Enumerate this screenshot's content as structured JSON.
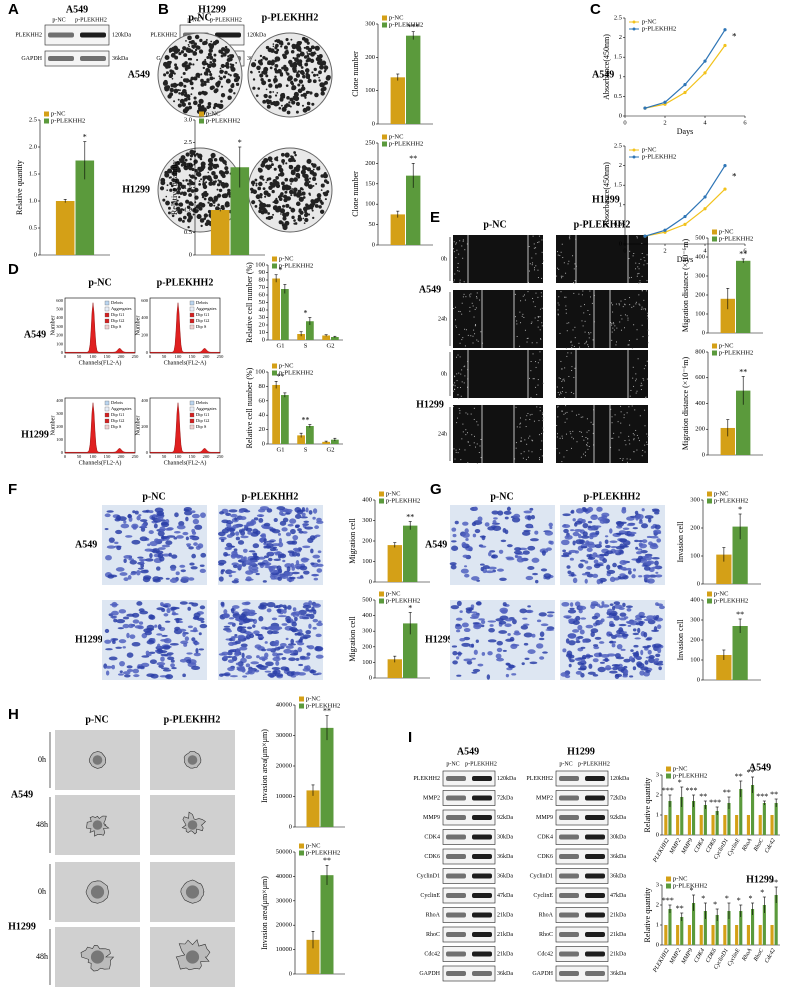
{
  "figure": {
    "panels": [
      "A",
      "B",
      "C",
      "D",
      "E",
      "F",
      "G",
      "H",
      "I"
    ],
    "A": {
      "cell_lines": [
        "A549",
        "H1299"
      ],
      "lanes": [
        "p-NC",
        "p-PLEKHH2"
      ],
      "blots": [
        {
          "protein": "PLEKHH2",
          "size": "120kDa"
        },
        {
          "protein": "GAPDH",
          "size": "36kDa"
        }
      ]
    },
    "B": {
      "columns": [
        "p-NC",
        "p-PLEKHH2"
      ],
      "rows": [
        "A549",
        "H1299"
      ]
    },
    "C": {
      "rows": [
        "A549",
        "H1299"
      ]
    },
    "D": {
      "columns": [
        "p-NC",
        "p-PLEKHH2"
      ],
      "rows": [
        "A549",
        "H1299"
      ],
      "legend": [
        "Debris",
        "Aggregates",
        "Dip G1",
        "Dip G2",
        "Dip S"
      ],
      "xlabel": "Channels(FL2-A)",
      "ylabel": "Number",
      "xticks": [
        0,
        50,
        100,
        150,
        200,
        250
      ],
      "yticks": [
        [
          0,
          100,
          200,
          300,
          400,
          500,
          600
        ],
        [
          0,
          200,
          400,
          600
        ],
        [
          0,
          100,
          200,
          300,
          400
        ],
        [
          0,
          200,
          400
        ]
      ]
    },
    "E": {
      "columns": [
        "p-NC",
        "p-PLEKHH2"
      ],
      "rows": [
        "A549",
        "H1299"
      ],
      "times": [
        "0h",
        "24h"
      ]
    },
    "F": {
      "columns": [
        "p-NC",
        "p-PLEKHH2"
      ],
      "rows": [
        "A549",
        "H1299"
      ]
    },
    "G": {
      "columns": [
        "p-NC",
        "p-PLEKHH2"
      ],
      "rows": [
        "A549",
        "H1299"
      ]
    },
    "H": {
      "columns": [
        "p-NC",
        "p-PLEKHH2"
      ],
      "rows": [
        "A549",
        "H1299"
      ],
      "times": [
        "0h",
        "48h"
      ]
    },
    "I": {
      "cell_lines": [
        "A549",
        "H1299"
      ],
      "lanes": [
        "p-NC",
        "p-PLEKHH2"
      ],
      "blots": [
        {
          "protein": "PLEKHH2",
          "size": "120kDa"
        },
        {
          "protein": "MMP2",
          "size": "72kDa"
        },
        {
          "protein": "MMP9",
          "size": "92kDa"
        },
        {
          "protein": "CDK4",
          "size": "30kDa"
        },
        {
          "protein": "CDK6",
          "size": "36kDa"
        },
        {
          "protein": "CyclinD1",
          "size": "36kDa"
        },
        {
          "protein": "CyclinE",
          "size": "47kDa"
        },
        {
          "protein": "RhoA",
          "size": "21kDa"
        },
        {
          "protein": "RhoC",
          "size": "21kDa"
        },
        {
          "protein": "Cdc42",
          "size": "21kDa"
        },
        {
          "protein": "GAPDH",
          "size": "36kDa"
        }
      ],
      "chart_titles": [
        "A549",
        "H1299"
      ]
    }
  },
  "chart_data": [
    {
      "type": "bar",
      "ylabel": "Relative quantity",
      "categories": [
        null
      ],
      "series": [
        {
          "name": "p-NC",
          "color": "#d4a017",
          "values": [
            1.0
          ],
          "errors": [
            0.03
          ]
        },
        {
          "name": "p-PLEKHH2",
          "color": "#5b9a3c",
          "values": [
            1.75
          ],
          "errors": [
            0.35
          ]
        }
      ],
      "significance": [
        "*"
      ],
      "ylim": [
        0,
        2.5
      ],
      "yticks": [
        0,
        0.5,
        {
          "value": 1,
          "label": "1.0"
        },
        1.5,
        {
          "value": 2,
          "label": "2.0"
        },
        2.5
      ]
    },
    {
      "type": "bar",
      "ylabel": "Relative quantity",
      "categories": [
        null
      ],
      "series": [
        {
          "name": "p-NC",
          "color": "#d4a017",
          "values": [
            1.0
          ],
          "errors": [
            0.03
          ]
        },
        {
          "name": "p-PLEKHH2",
          "color": "#5b9a3c",
          "values": [
            1.95
          ],
          "errors": [
            0.45
          ]
        }
      ],
      "significance": [
        "*"
      ],
      "ylim": [
        0,
        3
      ],
      "yticks": [
        0,
        0.5,
        {
          "value": 1,
          "label": "1.0"
        },
        1.5,
        {
          "value": 2,
          "label": "2.0"
        },
        2.5,
        {
          "value": 3,
          "label": "3.0"
        }
      ]
    },
    {
      "type": "bar",
      "ylabel": "Clone number",
      "categories": [
        null
      ],
      "series": [
        {
          "name": "p-NC",
          "color": "#d4a017",
          "values": [
            140
          ],
          "errors": [
            10
          ]
        },
        {
          "name": "p-PLEKHH2",
          "color": "#5b9a3c",
          "values": [
            265
          ],
          "errors": [
            12
          ]
        }
      ],
      "significance": [
        "***"
      ],
      "ylim": [
        0,
        300
      ],
      "yticks": [
        0,
        100,
        200,
        300
      ]
    },
    {
      "type": "bar",
      "ylabel": "Clone number",
      "categories": [
        null
      ],
      "series": [
        {
          "name": "p-NC",
          "color": "#d4a017",
          "values": [
            75
          ],
          "errors": [
            8
          ]
        },
        {
          "name": "p-PLEKHH2",
          "color": "#5b9a3c",
          "values": [
            170
          ],
          "errors": [
            30
          ]
        }
      ],
      "significance": [
        "**"
      ],
      "ylim": [
        0,
        250
      ],
      "yticks": [
        0,
        50,
        100,
        150,
        200,
        250
      ]
    },
    {
      "type": "line",
      "ylabel": "Absorbance(450nm)",
      "xlabel": "Days",
      "x": [
        1,
        2,
        3,
        4,
        5
      ],
      "series": [
        {
          "name": "p-NC",
          "color": "#f2c21b",
          "values": [
            0.2,
            0.3,
            0.6,
            1.1,
            1.8
          ]
        },
        {
          "name": "p-PLEKHH2",
          "color": "#2e75b6",
          "values": [
            0.2,
            0.35,
            0.8,
            1.4,
            2.2
          ]
        }
      ],
      "annotation": "*",
      "xlim": [
        0,
        6
      ],
      "xticks": [
        0,
        2,
        4,
        6
      ],
      "ylim": [
        0,
        2.5
      ],
      "yticks": [
        0,
        0.5,
        1,
        1.5,
        2,
        2.5
      ]
    },
    {
      "type": "line",
      "ylabel": "Absorbance(450nm)",
      "xlabel": "Days",
      "x": [
        1,
        2,
        3,
        4,
        5
      ],
      "series": [
        {
          "name": "p-NC",
          "color": "#f2c21b",
          "values": [
            0.2,
            0.3,
            0.5,
            0.9,
            1.4
          ]
        },
        {
          "name": "p-PLEKHH2",
          "color": "#2e75b6",
          "values": [
            0.2,
            0.35,
            0.7,
            1.2,
            2.0
          ]
        }
      ],
      "annotation": "*",
      "xlim": [
        0,
        6
      ],
      "xticks": [
        0,
        2,
        4,
        6
      ],
      "ylim": [
        0,
        2.5
      ],
      "yticks": [
        0,
        0.5,
        1,
        1.5,
        2,
        2.5
      ]
    },
    {
      "type": "bar",
      "ylabel": "Relative cell number (%)",
      "categories": [
        "G1",
        "S",
        "G2"
      ],
      "series": [
        {
          "name": "p-NC",
          "color": "#d4a017",
          "values": [
            82,
            8,
            6
          ],
          "errors": [
            5,
            3,
            1
          ]
        },
        {
          "name": "p-PLEKHH2",
          "color": "#5b9a3c",
          "values": [
            68,
            25,
            4
          ],
          "errors": [
            6,
            5,
            1
          ]
        }
      ],
      "significance": [
        "*",
        "*",
        null
      ],
      "ylim": [
        0,
        100
      ],
      "yticks": [
        0,
        10,
        20,
        30,
        40,
        50,
        60,
        70,
        80,
        90,
        100
      ]
    },
    {
      "type": "bar",
      "ylabel": "Relative cell number (%)",
      "categories": [
        "G1",
        "S",
        "G2"
      ],
      "series": [
        {
          "name": "p-NC",
          "color": "#d4a017",
          "values": [
            82,
            12,
            3
          ],
          "errors": [
            5,
            3,
            1
          ]
        },
        {
          "name": "p-PLEKHH2",
          "color": "#5b9a3c",
          "values": [
            68,
            25,
            6
          ],
          "errors": [
            3,
            2,
            2
          ]
        }
      ],
      "significance": [
        "**",
        "**",
        null
      ],
      "ylim": [
        0,
        100
      ],
      "yticks": [
        0,
        20,
        40,
        60,
        80,
        100
      ]
    },
    {
      "type": "bar",
      "ylabel": "Migration distance (×10⁻⁶m)",
      "categories": [
        null
      ],
      "series": [
        {
          "name": "p-NC",
          "color": "#d4a017",
          "values": [
            180
          ],
          "errors": [
            55
          ]
        },
        {
          "name": "p-PLEKHH2",
          "color": "#5b9a3c",
          "values": [
            380
          ],
          "errors": [
            10
          ]
        }
      ],
      "significance": [
        "**"
      ],
      "ylim": [
        0,
        500
      ],
      "yticks": [
        0,
        100,
        200,
        300,
        400,
        500
      ]
    },
    {
      "type": "bar",
      "ylabel": "Migration distance (×10⁻⁶m)",
      "categories": [
        null
      ],
      "series": [
        {
          "name": "p-NC",
          "color": "#d4a017",
          "values": [
            210
          ],
          "errors": [
            65
          ]
        },
        {
          "name": "p-PLEKHH2",
          "color": "#5b9a3c",
          "values": [
            500
          ],
          "errors": [
            110
          ]
        }
      ],
      "significance": [
        "**"
      ],
      "ylim": [
        0,
        800
      ],
      "yticks": [
        0,
        200,
        400,
        600,
        800
      ]
    },
    {
      "type": "bar",
      "ylabel": "Migration cell",
      "categories": [
        null
      ],
      "series": [
        {
          "name": "p-NC",
          "color": "#d4a017",
          "values": [
            180
          ],
          "errors": [
            12
          ]
        },
        {
          "name": "p-PLEKHH2",
          "color": "#5b9a3c",
          "values": [
            275
          ],
          "errors": [
            20
          ]
        }
      ],
      "significance": [
        "**"
      ],
      "ylim": [
        0,
        400
      ],
      "yticks": [
        0,
        100,
        200,
        300,
        400
      ]
    },
    {
      "type": "bar",
      "ylabel": "Migration cell",
      "categories": [
        null
      ],
      "series": [
        {
          "name": "p-NC",
          "color": "#d4a017",
          "values": [
            120
          ],
          "errors": [
            20
          ]
        },
        {
          "name": "p-PLEKHH2",
          "color": "#5b9a3c",
          "values": [
            350
          ],
          "errors": [
            70
          ]
        }
      ],
      "significance": [
        "*"
      ],
      "ylim": [
        0,
        500
      ],
      "yticks": [
        0,
        100,
        200,
        300,
        400,
        500
      ]
    },
    {
      "type": "bar",
      "ylabel": "Invasion cell",
      "categories": [
        null
      ],
      "series": [
        {
          "name": "p-NC",
          "color": "#d4a017",
          "values": [
            105
          ],
          "errors": [
            25
          ]
        },
        {
          "name": "p-PLEKHH2",
          "color": "#5b9a3c",
          "values": [
            205
          ],
          "errors": [
            45
          ]
        }
      ],
      "significance": [
        "*"
      ],
      "ylim": [
        0,
        300
      ],
      "yticks": [
        0,
        100,
        200,
        300
      ]
    },
    {
      "type": "bar",
      "ylabel": "Invasion cell",
      "categories": [
        null
      ],
      "series": [
        {
          "name": "p-NC",
          "color": "#d4a017",
          "values": [
            125
          ],
          "errors": [
            25
          ]
        },
        {
          "name": "p-PLEKHH2",
          "color": "#5b9a3c",
          "values": [
            270
          ],
          "errors": [
            35
          ]
        }
      ],
      "significance": [
        "**"
      ],
      "ylim": [
        0,
        400
      ],
      "yticks": [
        0,
        100,
        200,
        300,
        400
      ]
    },
    {
      "type": "bar",
      "ylabel": "Invasion area(μm×μm)",
      "categories": [
        null
      ],
      "series": [
        {
          "name": "p-NC",
          "color": "#d4a017",
          "values": [
            12000
          ],
          "errors": [
            1800
          ]
        },
        {
          "name": "p-PLEKHH2",
          "color": "#5b9a3c",
          "values": [
            32500
          ],
          "errors": [
            4000
          ]
        }
      ],
      "significance": [
        "**"
      ],
      "ylim": [
        0,
        40000
      ],
      "yticks": [
        0,
        10000,
        20000,
        30000,
        40000
      ]
    },
    {
      "type": "bar",
      "ylabel": "Invasion area(μm×μm)",
      "categories": [
        null
      ],
      "series": [
        {
          "name": "p-NC",
          "color": "#d4a017",
          "values": [
            14000
          ],
          "errors": [
            3500
          ]
        },
        {
          "name": "p-PLEKHH2",
          "color": "#5b9a3c",
          "values": [
            40500
          ],
          "errors": [
            4000
          ]
        }
      ],
      "significance": [
        "**"
      ],
      "ylim": [
        0,
        50000
      ],
      "yticks": [
        0,
        10000,
        20000,
        30000,
        40000,
        50000
      ]
    },
    {
      "type": "bar",
      "ylabel": "Relative quantity",
      "categories": [
        "PLEKHH2",
        "MMP2",
        "MMP9",
        "CDK4",
        "CDK6",
        "CyclinD1",
        "CyclinE",
        "RhoA",
        "RhoC",
        "Cdc42"
      ],
      "series": [
        {
          "name": "p-NC",
          "color": "#d4a017",
          "values": [
            1,
            1,
            1,
            1,
            1,
            1,
            1,
            1,
            1,
            1
          ]
        },
        {
          "name": "p-PLEKHH2",
          "color": "#5b9a3c",
          "values": [
            1.7,
            1.9,
            1.7,
            1.5,
            1.2,
            1.6,
            2.3,
            2.5,
            1.6,
            1.6
          ],
          "errors": [
            0.3,
            0.5,
            0.3,
            0.2,
            0.2,
            0.3,
            0.4,
            0.4,
            0.1,
            0.2
          ]
        }
      ],
      "significance": [
        "***",
        "*",
        "***",
        "**",
        "***",
        "**",
        "**",
        "**",
        "***",
        "**"
      ],
      "ylim": [
        0,
        3
      ],
      "yticks": [
        0,
        1,
        2,
        3
      ]
    },
    {
      "type": "bar",
      "ylabel": "Relative quantity",
      "categories": [
        "PLEKHH2",
        "MMP2",
        "MMP9",
        "CDK4",
        "CDK6",
        "CyclinD1",
        "CyclinE",
        "RhoA",
        "RhoC",
        "Cdc42"
      ],
      "series": [
        {
          "name": "p-NC",
          "color": "#d4a017",
          "values": [
            1,
            1,
            1,
            1,
            1,
            1,
            1,
            1,
            1,
            1
          ]
        },
        {
          "name": "p-PLEKHH2",
          "color": "#5b9a3c",
          "values": [
            1.8,
            1.4,
            2.1,
            1.7,
            1.5,
            1.7,
            1.7,
            1.8,
            2.0,
            2.5
          ],
          "errors": [
            0.2,
            0.2,
            0.4,
            0.4,
            0.3,
            0.4,
            0.3,
            0.3,
            0.4,
            0.4
          ]
        }
      ],
      "significance": [
        "***",
        "**",
        "*",
        "*",
        "*",
        "*",
        "*",
        "*",
        "*",
        "**"
      ],
      "ylim": [
        0,
        3
      ],
      "yticks": [
        0,
        1,
        2,
        3
      ]
    }
  ]
}
